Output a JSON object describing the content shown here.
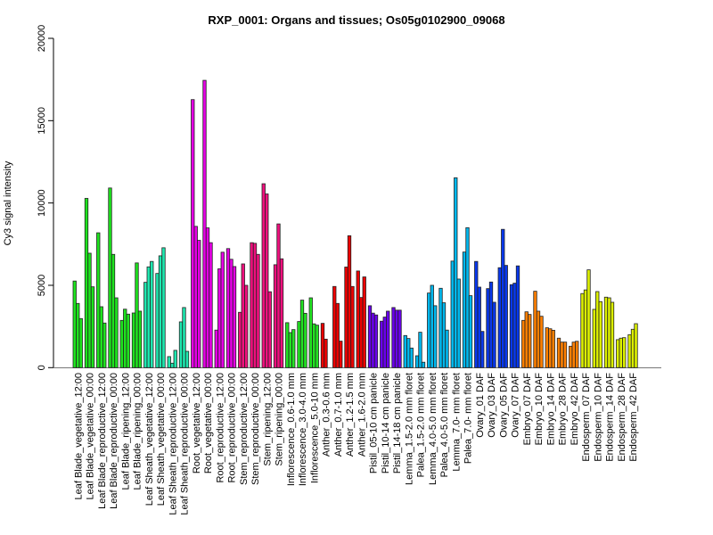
{
  "chart_data": {
    "type": "bar",
    "title": "RXP_0001: Organs and tissues; Os05g0102900_09068",
    "xlabel": "",
    "ylabel": "Cy3 signal intensity",
    "ylim": [
      0,
      20000
    ],
    "yticks": [
      "0",
      "5000",
      "10000",
      "15000",
      "20000"
    ],
    "yticks_values": [
      0,
      5000,
      10000,
      15000,
      20000
    ],
    "bars_per_category": 3,
    "categories": [
      "Leaf Blade_vegetative_12:00",
      "Leaf Blade_vegetative_00:00",
      "Leaf Blade_reproductive_12:00",
      "Leaf Blade_reproductive_00:00",
      "Leaf Blade_ripening_12:00",
      "Leaf Blade_ripening_00:00",
      "Leaf Sheath_vegetative_12:00",
      "Leaf Sheath_vegetative_00:00",
      "Leaf Sheath_reproductive_12:00",
      "Leaf Sheath_reproductive_00:00",
      "Root_vegetative_12:00",
      "Root_vegetative_00:00",
      "Root_reproductive_12:00",
      "Root_reproductive_00:00",
      "Stem_reproductive_12:00",
      "Stem_reproductive_00:00",
      "Stem_ripening_12:00",
      "Stem_ripening_00:00",
      "Inflorescence_0.6-1.0 mm",
      "Inflorescence_3.0-4.0 mm",
      "Inflorescence_5.0-10 mm",
      "Anther_0.3-0.6 mm",
      "Anther_0.7-1.0 mm",
      "Anther_1.2-1.5 mm",
      "Anther_1.6-2.0 mm",
      "Pistil_05-10 cm panicle",
      "Pistil_10-14 cm panicle",
      "Pistil_14-18 cm panicle",
      "Lemma_1.5-2.0 mm floret",
      "Palea_1.5-2.0 mm floret",
      "Lemma_4.0-5.0 mm floret",
      "Palea_4.0-5.0 mm floret",
      "Lemma_7.0- mm floret",
      "Palea_7.0- mm floret",
      "Ovary_01 DAF",
      "Ovary_03 DAF",
      "Ovary_05 DAF",
      "Ovary_07 DAF",
      "Embryo_07 DAF",
      "Embryo_10 DAF",
      "Embryo_14 DAF",
      "Embryo_28 DAF",
      "Embryo_42 DAF",
      "Endosperm_07 DAF",
      "Endosperm_10 DAF",
      "Endosperm_14 DAF",
      "Endosperm_28 DAF",
      "Endosperm_42 DAF"
    ],
    "values": [
      [
        5260,
        3900,
        2980
      ],
      [
        10280,
        6950,
        4910
      ],
      [
        8190,
        3700,
        2710
      ],
      [
        10910,
        6880,
        4240
      ],
      [
        2870,
        3550,
        3250
      ],
      [
        3320,
        6360,
        3430
      ],
      [
        5180,
        6120,
        6450
      ],
      [
        5720,
        6790,
        7280
      ],
      [
        670,
        270,
        1050
      ],
      [
        2780,
        3650,
        990
      ],
      [
        16280,
        8580,
        7730
      ],
      [
        17450,
        8490,
        7590
      ],
      [
        2280,
        6000,
        7010
      ],
      [
        7230,
        6580,
        6140
      ],
      [
        3360,
        6300,
        5000
      ],
      [
        7590,
        7550,
        6880
      ],
      [
        11170,
        10550,
        4610
      ],
      [
        6250,
        8730,
        6610
      ],
      [
        2730,
        2130,
        2310
      ],
      [
        2800,
        4100,
        3300
      ],
      [
        4240,
        2660,
        2580
      ],
      [
        2690,
        1730,
        0
      ],
      [
        4930,
        3900,
        1610
      ],
      [
        6110,
        8010,
        4930
      ],
      [
        5870,
        4260,
        5510
      ],
      [
        3760,
        3310,
        3200
      ],
      [
        2820,
        3070,
        3430
      ],
      [
        3650,
        3490,
        3490
      ],
      [
        1950,
        1770,
        1190
      ],
      [
        720,
        2150,
        330
      ],
      [
        4530,
        5000,
        3760
      ],
      [
        4820,
        3940,
        2280
      ],
      [
        6470,
        11530,
        5380
      ],
      [
        7020,
        8500,
        4370
      ],
      [
        6450,
        4890,
        2200
      ],
      [
        4800,
        5200,
        3970
      ],
      [
        6070,
        8400,
        6210
      ],
      [
        5040,
        5130,
        6180
      ],
      [
        2870,
        3390,
        3230
      ],
      [
        4640,
        3430,
        3120
      ],
      [
        2420,
        2360,
        2270
      ],
      [
        1790,
        1550,
        1550
      ],
      [
        1300,
        1550,
        1600
      ],
      [
        4500,
        4720,
        5940
      ],
      [
        3540,
        4620,
        4010
      ],
      [
        4280,
        4240,
        3970
      ],
      [
        1700,
        1790,
        1820
      ],
      [
        2000,
        2330,
        2670
      ]
    ],
    "colors": [
      "#1ee41e",
      "#1ee41e",
      "#1ee41e",
      "#1ee41e",
      "#1ee41e",
      "#1ee41e",
      "#1ee8b0",
      "#1ee8b0",
      "#1ee8b0",
      "#1ee8b0",
      "#e600e6",
      "#e600e6",
      "#e600e6",
      "#e600e6",
      "#f0107e",
      "#f0107e",
      "#f0107e",
      "#f0107e",
      "#22e422",
      "#22e422",
      "#22e422",
      "#ee0000",
      "#ee0000",
      "#ee0000",
      "#ee0000",
      "#6a00ee",
      "#6a00ee",
      "#6a00ee",
      "#00b8ee",
      "#00b8ee",
      "#00b8ee",
      "#00b8ee",
      "#00b8ee",
      "#00b8ee",
      "#0838ee",
      "#0838ee",
      "#0838ee",
      "#0838ee",
      "#ff8000",
      "#ff8000",
      "#ff8000",
      "#ff8000",
      "#ff8000",
      "#dcf000",
      "#dcf000",
      "#dcf000",
      "#dcf000",
      "#dcf000"
    ],
    "grid": false,
    "legend": "none"
  }
}
